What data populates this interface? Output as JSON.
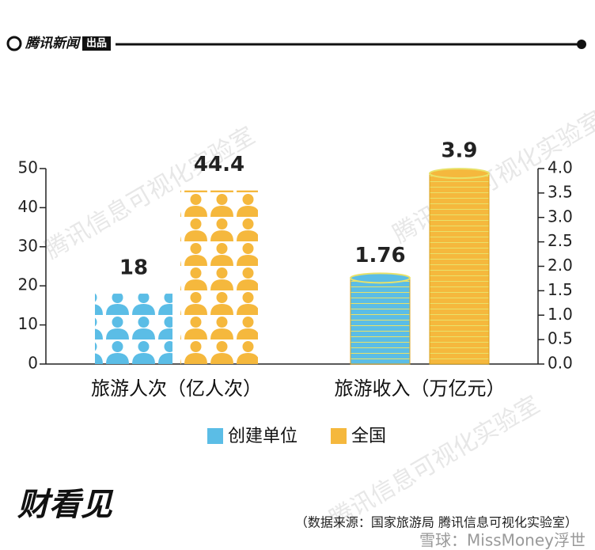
{
  "header": {
    "logo": "腾讯新闻",
    "badge": "出品"
  },
  "watermark": "腾讯信息可视化实验室",
  "chart_data": [
    {
      "type": "bar",
      "categories": [
        "旅游人次（亿人次）"
      ],
      "series": [
        {
          "name": "创建单位",
          "color": "#5bbde6",
          "values": [
            18
          ]
        },
        {
          "name": "全国",
          "color": "#f5b83d",
          "values": [
            44.4
          ]
        }
      ],
      "ylim": [
        0,
        50
      ],
      "yticks": [
        0,
        10,
        20,
        30,
        40,
        50
      ]
    },
    {
      "type": "bar",
      "categories": [
        "旅游收入（万亿元）"
      ],
      "series": [
        {
          "name": "创建单位",
          "color": "#5bbde6",
          "values": [
            1.76
          ],
          "axis": "y2"
        },
        {
          "name": "全国",
          "color": "#f5b83d",
          "values": [
            3.9
          ],
          "axis": "y2"
        }
      ],
      "y2lim": [
        0,
        4
      ],
      "y2ticks": [
        {
          "value": 0,
          "label": "0.0"
        },
        0.5,
        {
          "value": 1,
          "label": "1.0"
        },
        1.5,
        {
          "value": 2,
          "label": "2.0"
        },
        2.5,
        {
          "value": 3,
          "label": "3.0"
        },
        3.5,
        {
          "value": 4,
          "label": "4.0"
        }
      ]
    }
  ],
  "footer": {
    "brand": "财看见",
    "source": "（数据来源：国家旅游局 腾讯信息可视化实验室）",
    "credit": "雪球：MissMoney浮世"
  }
}
